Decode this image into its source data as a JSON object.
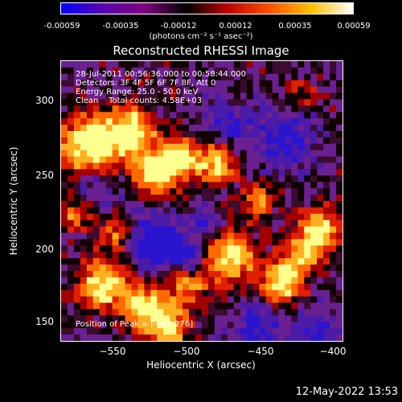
{
  "colorbar": {
    "ticks": [
      "-0.00059",
      "-0.00035",
      "-0.00012",
      "0.00012",
      "0.00035",
      "0.00059"
    ],
    "unit_label": "(photons cm⁻² s⁻¹ asec⁻²)"
  },
  "plot": {
    "title": "Reconstructed RHESSI Image",
    "info_lines": [
      "28-Jul-2011 00:56:36.000 to 00:58:44.000",
      "Detectors: 3F 4F 5F 6F 7F 8F, Att 0",
      "Energy Range: 25.0 - 50.0 keV",
      "Clean    Total counts: 4.58E+03"
    ],
    "peak_label": "Position of Peak = [-560,276]",
    "ylabel": "Heliocentric Y (arcsec)",
    "xlabel": "Heliocentric X (arcsec)",
    "yticks": [
      "300",
      "250",
      "200",
      "150"
    ],
    "xticks": [
      "−550",
      "−500",
      "−450",
      "−400"
    ]
  },
  "footer": {
    "timestamp": "12-May-2022 13:53"
  },
  "colors": {
    "colorbar_stops": [
      "#0000ff",
      "#5a00b0",
      "#800080",
      "#000000",
      "#c00000",
      "#ff5000",
      "#ffc000",
      "#ffffff"
    ]
  }
}
